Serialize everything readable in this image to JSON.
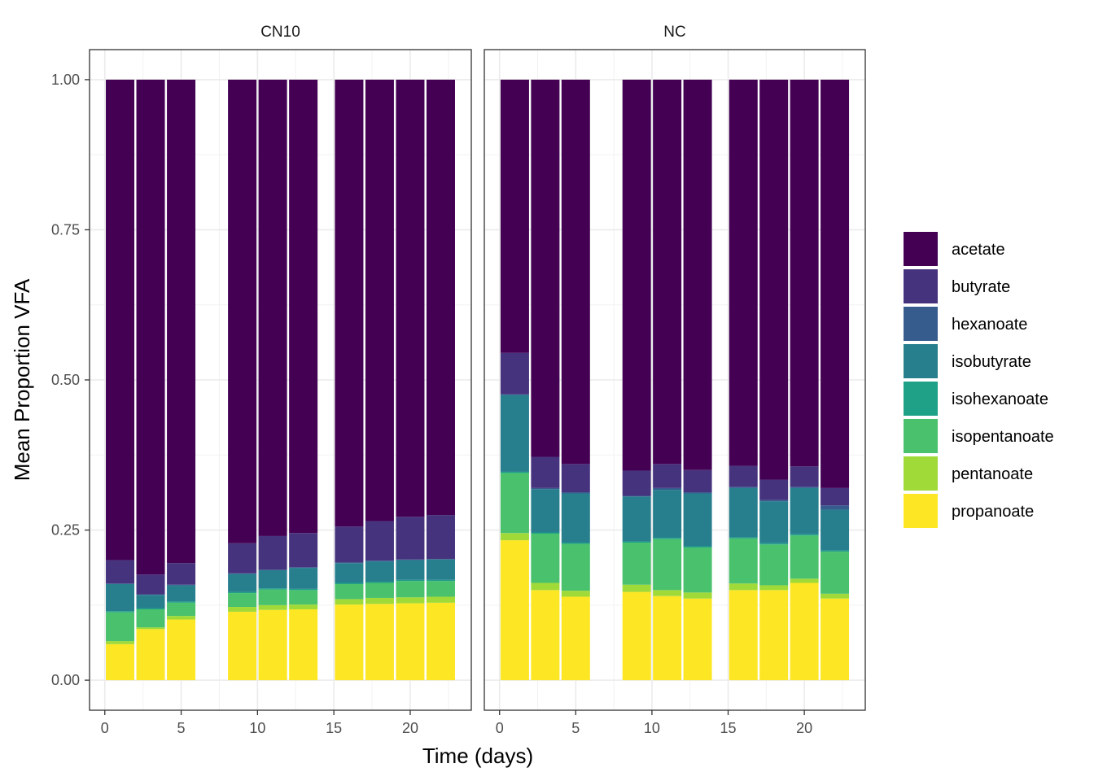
{
  "chart_data": {
    "type": "bar",
    "stacked": true,
    "facets": [
      "CN10",
      "NC"
    ],
    "x": [
      1,
      3,
      5,
      9,
      11,
      13,
      16,
      18,
      20,
      22
    ],
    "xlabel": "Time (days)",
    "ylabel": "Mean Proportion VFA",
    "xlim": [
      -1,
      24
    ],
    "ylim": [
      -0.05,
      1.05
    ],
    "xticks": [
      0,
      5,
      10,
      15,
      20
    ],
    "yticks": [
      0.0,
      0.25,
      0.5,
      0.75,
      1.0
    ],
    "ytick_labels": [
      "0.00",
      "0.25",
      "0.50",
      "0.75",
      "1.00"
    ],
    "grid": true,
    "legend_position": "right",
    "categories_legend": [
      "acetate",
      "butyrate",
      "hexanoate",
      "isobutyrate",
      "isohexanoate",
      "isopentanoate",
      "pentanoate",
      "propanoate"
    ],
    "colors": {
      "acetate": "#440154",
      "butyrate": "#46337e",
      "hexanoate": "#365c8d",
      "isobutyrate": "#277f8e",
      "isohexanoate": "#1fa187",
      "isopentanoate": "#4ac16d",
      "pentanoate": "#a0da39",
      "propanoate": "#fde725"
    },
    "stack_order": [
      "propanoate",
      "pentanoate",
      "isopentanoate",
      "isohexanoate",
      "isobutyrate",
      "hexanoate",
      "butyrate",
      "acetate"
    ],
    "panels": [
      {
        "name": "CN10",
        "series": [
          {
            "name": "propanoate",
            "values": [
              0.06,
              0.085,
              0.101,
              0.114,
              0.117,
              0.118,
              0.126,
              0.127,
              0.128,
              0.129
            ]
          },
          {
            "name": "pentanoate",
            "values": [
              0.005,
              0.003,
              0.006,
              0.008,
              0.008,
              0.008,
              0.009,
              0.01,
              0.01,
              0.01
            ]
          },
          {
            "name": "isopentanoate",
            "values": [
              0.048,
              0.03,
              0.022,
              0.023,
              0.026,
              0.024,
              0.025,
              0.025,
              0.027,
              0.026
            ]
          },
          {
            "name": "isohexanoate",
            "values": [
              0.002,
              0.002,
              0.002,
              0.002,
              0.002,
              0.002,
              0.002,
              0.002,
              0.002,
              0.002
            ]
          },
          {
            "name": "isobutyrate",
            "values": [
              0.045,
              0.022,
              0.027,
              0.03,
              0.03,
              0.035,
              0.033,
              0.034,
              0.033,
              0.034
            ]
          },
          {
            "name": "hexanoate",
            "values": [
              0.001,
              0.001,
              0.001,
              0.001,
              0.001,
              0.001,
              0.001,
              0.001,
              0.001,
              0.001
            ]
          },
          {
            "name": "butyrate",
            "values": [
              0.039,
              0.033,
              0.036,
              0.05,
              0.056,
              0.057,
              0.06,
              0.066,
              0.071,
              0.073
            ]
          },
          {
            "name": "acetate",
            "values": [
              0.8,
              0.824,
              0.805,
              0.772,
              0.76,
              0.755,
              0.744,
              0.735,
              0.728,
              0.725
            ]
          }
        ]
      },
      {
        "name": "NC",
        "series": [
          {
            "name": "propanoate",
            "values": [
              0.233,
              0.15,
              0.139,
              0.147,
              0.14,
              0.136,
              0.15,
              0.15,
              0.162,
              0.136
            ]
          },
          {
            "name": "pentanoate",
            "values": [
              0.012,
              0.012,
              0.01,
              0.012,
              0.01,
              0.01,
              0.011,
              0.008,
              0.007,
              0.008
            ]
          },
          {
            "name": "isopentanoate",
            "values": [
              0.1,
              0.082,
              0.078,
              0.07,
              0.085,
              0.075,
              0.075,
              0.068,
              0.072,
              0.07
            ]
          },
          {
            "name": "isohexanoate",
            "values": [
              0.002,
              0.002,
              0.002,
              0.002,
              0.002,
              0.002,
              0.002,
              0.002,
              0.002,
              0.002
            ]
          },
          {
            "name": "isobutyrate",
            "values": [
              0.128,
              0.072,
              0.082,
              0.075,
              0.08,
              0.088,
              0.082,
              0.07,
              0.077,
              0.068
            ]
          },
          {
            "name": "hexanoate",
            "values": [
              0.001,
              0.002,
              0.002,
              0.001,
              0.003,
              0.002,
              0.002,
              0.002,
              0.002,
              0.007
            ]
          },
          {
            "name": "butyrate",
            "values": [
              0.069,
              0.052,
              0.047,
              0.042,
              0.04,
              0.037,
              0.035,
              0.034,
              0.034,
              0.029
            ]
          },
          {
            "name": "acetate",
            "values": [
              0.455,
              0.628,
              0.64,
              0.651,
              0.64,
              0.65,
              0.643,
              0.666,
              0.644,
              0.68
            ]
          }
        ]
      }
    ]
  }
}
